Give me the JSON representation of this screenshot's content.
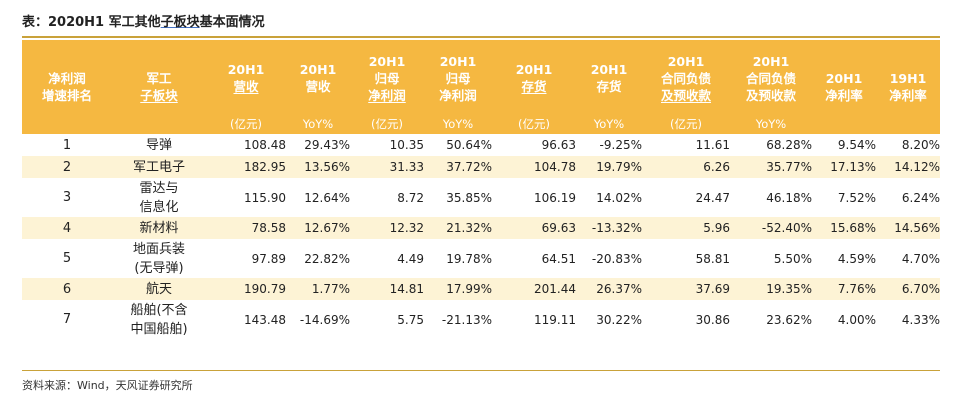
{
  "title": {
    "prefix": "表：2020H1 军工其他",
    "underlined": "子板块",
    "suffix": "基本面情况"
  },
  "header": {
    "rank": [
      "净利润",
      "增速排名"
    ],
    "name": [
      "军工",
      "子板块"
    ],
    "cols": [
      {
        "lines": [
          "20H1",
          "营收"
        ],
        "unit": "(亿元)"
      },
      {
        "lines": [
          "20H1",
          "营收"
        ],
        "unit": "YoY%"
      },
      {
        "lines": [
          "20H1",
          "归母",
          "净利润"
        ],
        "unit": "(亿元)"
      },
      {
        "lines": [
          "20H1",
          "归母",
          "净利润"
        ],
        "unit": "YoY%"
      },
      {
        "lines": [
          "20H1",
          "存货"
        ],
        "unit": "(亿元)"
      },
      {
        "lines": [
          "20H1",
          "存货"
        ],
        "unit": "YoY%"
      },
      {
        "lines": [
          "20H1",
          "合同负债",
          "及预收款"
        ],
        "unit": "(亿元)"
      },
      {
        "lines": [
          "20H1",
          "合同负债",
          "及预收款"
        ],
        "unit": "YoY%"
      },
      {
        "lines": [
          "20H1",
          "净利率"
        ],
        "unit": ""
      },
      {
        "lines": [
          "19H1",
          "净利率"
        ],
        "unit": ""
      }
    ]
  },
  "rows": [
    {
      "rank": "1",
      "name": [
        "导弹"
      ],
      "values": [
        "108.48",
        "29.43%",
        "10.35",
        "50.64%",
        "96.63",
        "-9.25%",
        "11.61",
        "68.28%",
        "9.54%",
        "8.20%"
      ]
    },
    {
      "rank": "2",
      "name": [
        "军工电子"
      ],
      "values": [
        "182.95",
        "13.56%",
        "31.33",
        "37.72%",
        "104.78",
        "19.79%",
        "6.26",
        "35.77%",
        "17.13%",
        "14.12%"
      ]
    },
    {
      "rank": "3",
      "name": [
        "雷达与",
        "信息化"
      ],
      "values": [
        "115.90",
        "12.64%",
        "8.72",
        "35.85%",
        "106.19",
        "14.02%",
        "24.47",
        "46.18%",
        "7.52%",
        "6.24%"
      ]
    },
    {
      "rank": "4",
      "name": [
        "新材料"
      ],
      "values": [
        "78.58",
        "12.67%",
        "12.32",
        "21.32%",
        "69.63",
        "-13.32%",
        "5.96",
        "-52.40%",
        "15.68%",
        "14.56%"
      ]
    },
    {
      "rank": "5",
      "name": [
        "地面兵装",
        "(无导弹)"
      ],
      "values": [
        "97.89",
        "22.82%",
        "4.49",
        "19.78%",
        "64.51",
        "-20.83%",
        "58.81",
        "5.50%",
        "4.59%",
        "4.70%"
      ]
    },
    {
      "rank": "6",
      "name": [
        "航天"
      ],
      "values": [
        "190.79",
        "1.77%",
        "14.81",
        "17.99%",
        "201.44",
        "26.37%",
        "37.69",
        "19.35%",
        "7.76%",
        "6.70%"
      ]
    },
    {
      "rank": "7",
      "name": [
        "船舶(不含",
        "中国船舶)"
      ],
      "values": [
        "143.48",
        "-14.69%",
        "5.75",
        "-21.13%",
        "119.11",
        "30.22%",
        "30.86",
        "23.62%",
        "4.00%",
        "4.33%"
      ]
    }
  ],
  "source": "资料来源：Wind，天风证券研究所"
}
